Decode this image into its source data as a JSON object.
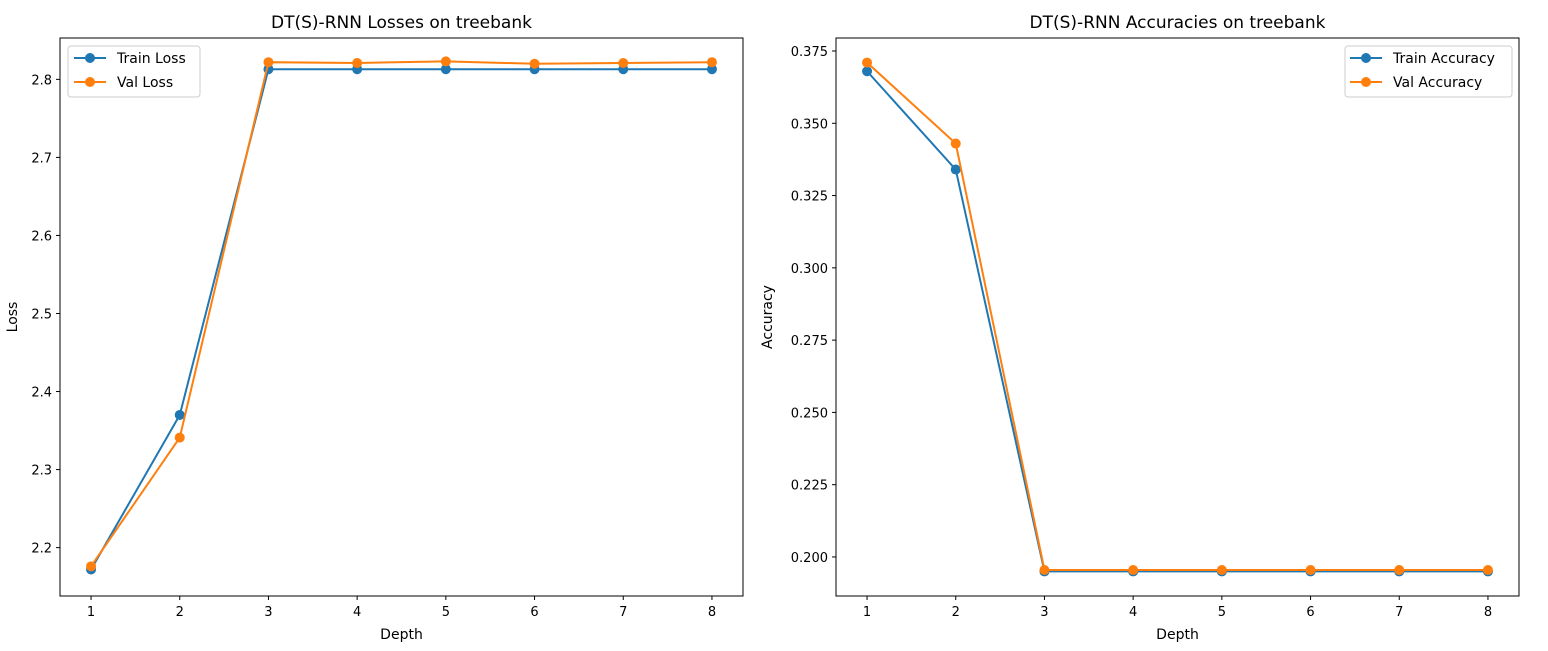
{
  "chart_data": [
    {
      "type": "line",
      "title": "DT(S)-RNN Losses on treebank",
      "xlabel": "Depth",
      "ylabel": "Loss",
      "x": [
        1,
        2,
        3,
        4,
        5,
        6,
        7,
        8
      ],
      "xticks": [
        "1",
        "2",
        "3",
        "4",
        "5",
        "6",
        "7",
        "8"
      ],
      "yticks": [
        "2.2",
        "2.3",
        "2.4",
        "2.5",
        "2.6",
        "2.7",
        "2.8"
      ],
      "ylim": [
        2.138,
        2.853
      ],
      "legend_position": "upper-left",
      "series": [
        {
          "name": "Train Loss",
          "color": "#1f77b4",
          "values": [
            2.172,
            2.37,
            2.813,
            2.813,
            2.813,
            2.813,
            2.813,
            2.813
          ]
        },
        {
          "name": "Val Loss",
          "color": "#ff7f0e",
          "values": [
            2.176,
            2.341,
            2.822,
            2.821,
            2.823,
            2.82,
            2.821,
            2.822
          ]
        }
      ]
    },
    {
      "type": "line",
      "title": "DT(S)-RNN Accuracies on treebank",
      "xlabel": "Depth",
      "ylabel": "Accuracy",
      "x": [
        1,
        2,
        3,
        4,
        5,
        6,
        7,
        8
      ],
      "xticks": [
        "1",
        "2",
        "3",
        "4",
        "5",
        "6",
        "7",
        "8"
      ],
      "yticks": [
        "0.200",
        "0.225",
        "0.250",
        "0.275",
        "0.300",
        "0.325",
        "0.350",
        "0.375"
      ],
      "ylim": [
        0.1865,
        0.3795
      ],
      "legend_position": "upper-right",
      "series": [
        {
          "name": "Train Accuracy",
          "color": "#1f77b4",
          "values": [
            0.368,
            0.334,
            0.195,
            0.195,
            0.195,
            0.195,
            0.195,
            0.195
          ]
        },
        {
          "name": "Val Accuracy",
          "color": "#ff7f0e",
          "values": [
            0.371,
            0.343,
            0.1955,
            0.1955,
            0.1955,
            0.1955,
            0.1955,
            0.1955
          ]
        }
      ]
    }
  ]
}
